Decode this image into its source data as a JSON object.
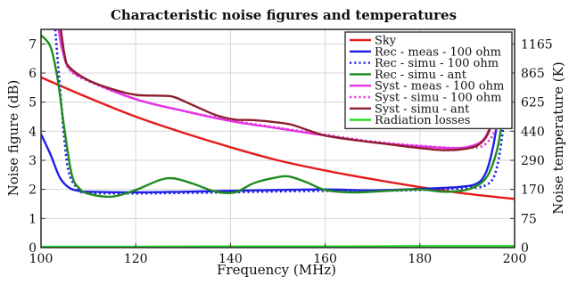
{
  "chart_data": {
    "type": "line",
    "title": "Characteristic noise figures and temperatures",
    "xlabel": "Frequency (MHz)",
    "ylabel": "Noise figure (dB)",
    "y2label": "Noise temperature (K)",
    "xlim": [
      100,
      200
    ],
    "ylim": [
      0,
      7.5
    ],
    "x_ticks": [
      "100",
      "120",
      "140",
      "160",
      "180",
      "200"
    ],
    "y_ticks": [
      "0",
      "1",
      "2",
      "3",
      "4",
      "5",
      "6",
      "7"
    ],
    "y2_ticks": [
      {
        "label": "0",
        "at_db": 0
      },
      {
        "label": "75",
        "at_db": 1
      },
      {
        "label": "170",
        "at_db": 2
      },
      {
        "label": "290",
        "at_db": 3
      },
      {
        "label": "440",
        "at_db": 4
      },
      {
        "label": "625",
        "at_db": 5
      },
      {
        "label": "865",
        "at_db": 6
      },
      {
        "label": "1165",
        "at_db": 7
      }
    ],
    "grid": true,
    "legend_position": "top-right",
    "series": [
      {
        "name": "Sky",
        "color": "#e41a1a",
        "dash": "solid",
        "x": [
          100,
          110,
          120,
          130,
          140,
          150,
          160,
          170,
          180,
          190,
          200
        ],
        "y": [
          5.85,
          5.15,
          4.5,
          3.95,
          3.45,
          3.0,
          2.65,
          2.35,
          2.08,
          1.85,
          1.67
        ]
      },
      {
        "name": "Rec - meas - 100 ohm",
        "color": "#1f1fe6",
        "dash": "solid",
        "x": [
          100,
          102,
          104,
          106,
          108,
          110,
          120,
          130,
          140,
          150,
          160,
          170,
          180,
          188,
          192,
          194,
          195.5,
          197
        ],
        "y": [
          3.9,
          3.2,
          2.4,
          2.05,
          1.95,
          1.92,
          1.9,
          1.92,
          1.95,
          1.98,
          2.0,
          1.97,
          2.02,
          2.08,
          2.2,
          2.6,
          3.5,
          5.0
        ]
      },
      {
        "name": "Rec - simu - 100 ohm",
        "color": "#1f1fe6",
        "dash": "dotted",
        "x": [
          103,
          104,
          105,
          106,
          108,
          110,
          120,
          130,
          140,
          150,
          160,
          170,
          180,
          190,
          194,
          196,
          197.5,
          198.5
        ],
        "y": [
          7.5,
          5.5,
          3.6,
          2.5,
          2.0,
          1.88,
          1.86,
          1.88,
          1.9,
          1.93,
          1.95,
          1.95,
          1.98,
          2.05,
          2.15,
          2.6,
          4.0,
          6.0
        ]
      },
      {
        "name": "Rec - simu - ant",
        "color": "#1f8c1f",
        "dash": "solid",
        "x": [
          100,
          102,
          103.5,
          105,
          106.5,
          108,
          110,
          115,
          120,
          125,
          128,
          132,
          137,
          141,
          145,
          150,
          152.5,
          156,
          160,
          165,
          170,
          175,
          180,
          185,
          189,
          191.5,
          193.5,
          195,
          196.5,
          198
        ],
        "y": [
          7.3,
          6.9,
          5.8,
          4.0,
          2.5,
          2.05,
          1.85,
          1.75,
          1.98,
          2.32,
          2.38,
          2.2,
          1.92,
          1.9,
          2.22,
          2.42,
          2.44,
          2.25,
          1.98,
          1.9,
          1.92,
          1.97,
          2.0,
          1.92,
          1.96,
          2.08,
          2.3,
          2.7,
          3.5,
          5.0
        ]
      },
      {
        "name": "Syst - meas - 100 ohm",
        "color": "#e632e6",
        "dash": "solid",
        "x": [
          103.7,
          104.5,
          106,
          110,
          120,
          130,
          140,
          150,
          160,
          170,
          180,
          188,
          192,
          194,
          195.5,
          196.5
        ],
        "y": [
          7.5,
          6.8,
          6.15,
          5.75,
          5.1,
          4.7,
          4.35,
          4.1,
          3.85,
          3.62,
          3.48,
          3.42,
          3.55,
          3.85,
          4.5,
          5.3
        ]
      },
      {
        "name": "Syst - simu - 100 ohm",
        "color": "#e632e6",
        "dash": "dotted",
        "x": [
          104,
          104.8,
          106,
          110,
          120,
          130,
          140,
          150,
          160,
          170,
          180,
          190,
          194,
          196.5,
          198
        ],
        "y": [
          7.5,
          6.7,
          6.12,
          5.72,
          5.1,
          4.7,
          4.38,
          4.12,
          3.88,
          3.65,
          3.5,
          3.42,
          3.58,
          4.3,
          5.5
        ]
      },
      {
        "name": "Syst - simu - ant",
        "color": "#8c1f2e",
        "dash": "solid",
        "x": [
          104.2,
          105,
          106,
          110,
          115,
          120,
          125,
          128,
          132,
          137,
          141,
          145,
          150,
          153,
          157,
          160,
          165,
          170,
          175,
          180,
          185,
          189,
          192,
          194,
          195.5,
          197
        ],
        "y": [
          7.5,
          6.6,
          6.2,
          5.75,
          5.45,
          5.25,
          5.22,
          5.18,
          4.9,
          4.55,
          4.4,
          4.38,
          4.3,
          4.22,
          4.0,
          3.85,
          3.72,
          3.62,
          3.52,
          3.42,
          3.35,
          3.38,
          3.5,
          3.8,
          4.4,
          5.3
        ]
      },
      {
        "name": "Radiation losses",
        "color": "#22dd22",
        "dash": "solid",
        "x": [
          100,
          120,
          140,
          160,
          180,
          200
        ],
        "y": [
          0.03,
          0.03,
          0.04,
          0.04,
          0.05,
          0.05
        ]
      }
    ]
  }
}
